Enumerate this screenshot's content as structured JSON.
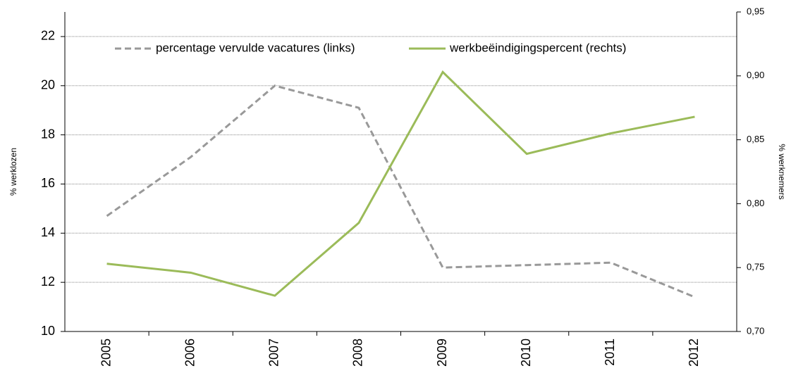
{
  "chart_data": {
    "type": "line",
    "y_label": "% werklozen",
    "y2_label": "% werknemers",
    "categories": [
      "2005",
      "2006",
      "2007",
      "2008",
      "2009",
      "2010",
      "2011",
      "2012"
    ],
    "series": [
      {
        "name": "percentage vervulde vacatures (links)",
        "color": "#999999",
        "dashed": true,
        "values": [
          14.7,
          17.1,
          20.0,
          19.1,
          12.6,
          12.7,
          12.8,
          11.4
        ]
      },
      {
        "name": "werkbeëindigingspercent (rechts)",
        "color": "#9bbb59",
        "dashed": false,
        "axis": "y2",
        "values": [
          0.753,
          0.746,
          0.728,
          0.785,
          0.903,
          0.839,
          0.855,
          0.868
        ]
      }
    ],
    "ylim": [
      10,
      23
    ],
    "yticks": [
      10,
      12,
      14,
      16,
      18,
      20,
      22
    ],
    "y2lim": [
      0.7,
      0.95
    ],
    "y2ticks": [
      {
        "value": 0.7,
        "label": "0,70"
      },
      {
        "value": 0.75,
        "label": "0,75"
      },
      {
        "value": 0.8,
        "label": "0,80"
      },
      {
        "value": 0.85,
        "label": "0,85"
      },
      {
        "value": 0.9,
        "label": "0,90"
      },
      {
        "value": 0.95,
        "label": "0,95"
      }
    ],
    "grid": true
  }
}
